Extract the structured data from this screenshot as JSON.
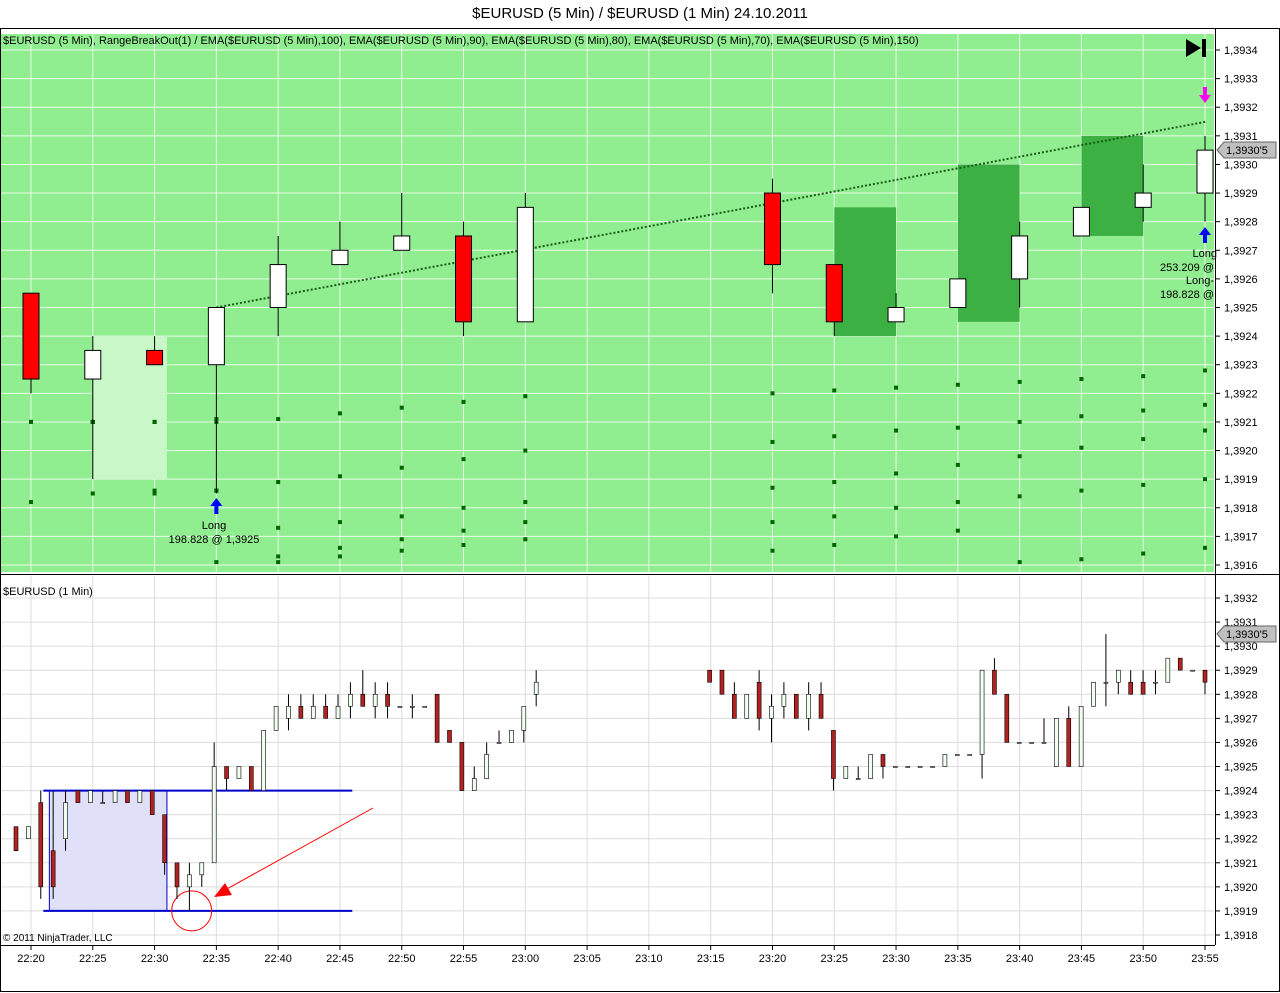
{
  "window": {
    "title": "$EURUSD (5 Min) / $EURUSD (1 Min)  24.10.2011",
    "copyright": "© 2011 NinjaTrader, LLC"
  },
  "colors": {
    "upper_bg": "#90ee90",
    "up_candle": "#ffffff",
    "down_candle": "#ff0000",
    "ema_dots": "#006400",
    "range_box": "#c8f7c8",
    "green_box": "#3cb043",
    "trend_line": "#1a5e1a",
    "lower_range_fill": "#e0e0f8",
    "lower_range_line": "#0000cc",
    "arrow_red": "#ff0000",
    "price_marker": "#c0c0c0",
    "long_arrow": "#0000ff",
    "short_arrow": "#ff00ff"
  },
  "chart_data": [
    {
      "type": "candlestick",
      "label": "$EURUSD (5 Min), RangeBreakOut(1) / EMA($EURUSD (5 Min),100), EMA($EURUSD (5 Min),90), EMA($EURUSD (5 Min),80), EMA($EURUSD (5 Min),70), EMA($EURUSD (5 Min),150)",
      "ylim": [
        1.39155,
        1.39345
      ],
      "y_ticks": [
        "1,3934",
        "1,3933",
        "1,3932",
        "1,3931",
        "1,3930",
        "1,3929",
        "1,3928",
        "1,3927",
        "1,3926",
        "1,3925",
        "1,3924",
        "1,3923",
        "1,3922",
        "1,3921",
        "1,3920",
        "1,3919",
        "1,3918",
        "1,3917",
        "1,3916"
      ],
      "price_marker": "1,3930'5",
      "candles": [
        {
          "t": "22:20",
          "o": 1.39255,
          "h": 1.39255,
          "l": 1.3922,
          "c": 1.39225
        },
        {
          "t": "22:25",
          "o": 1.39225,
          "h": 1.3924,
          "l": 1.3919,
          "c": 1.39235
        },
        {
          "t": "22:30",
          "o": 1.39235,
          "h": 1.3924,
          "l": 1.3923,
          "c": 1.3923
        },
        {
          "t": "22:35",
          "o": 1.3923,
          "h": 1.3925,
          "l": 1.39185,
          "c": 1.3925
        },
        {
          "t": "22:40",
          "o": 1.3925,
          "h": 1.39275,
          "l": 1.3924,
          "c": 1.39265
        },
        {
          "t": "22:45",
          "o": 1.39265,
          "h": 1.3928,
          "l": 1.39265,
          "c": 1.3927
        },
        {
          "t": "22:50",
          "o": 1.3927,
          "h": 1.3929,
          "l": 1.3927,
          "c": 1.39275
        },
        {
          "t": "22:55",
          "o": 1.39275,
          "h": 1.3928,
          "l": 1.3924,
          "c": 1.39245
        },
        {
          "t": "23:00",
          "o": 1.39245,
          "h": 1.3929,
          "l": 1.39245,
          "c": 1.39285
        },
        {
          "t": "23:20",
          "o": 1.3929,
          "h": 1.39295,
          "l": 1.39255,
          "c": 1.39265
        },
        {
          "t": "23:25",
          "o": 1.39265,
          "h": 1.39265,
          "l": 1.3924,
          "c": 1.39245
        },
        {
          "t": "23:30",
          "o": 1.39245,
          "h": 1.39255,
          "l": 1.39245,
          "c": 1.3925
        },
        {
          "t": "23:35",
          "o": 1.3925,
          "h": 1.3926,
          "l": 1.3925,
          "c": 1.3926
        },
        {
          "t": "23:40",
          "o": 1.3926,
          "h": 1.3928,
          "l": 1.3925,
          "c": 1.39275
        },
        {
          "t": "23:45",
          "o": 1.39275,
          "h": 1.39285,
          "l": 1.39275,
          "c": 1.39285
        },
        {
          "t": "23:50",
          "o": 1.39285,
          "h": 1.393,
          "l": 1.3928,
          "c": 1.3929
        },
        {
          "t": "23:55",
          "o": 1.3929,
          "h": 1.3931,
          "l": 1.3928,
          "c": 1.39305
        }
      ],
      "annotations": [
        {
          "text": "Long",
          "t": "22:35"
        },
        {
          "text": "198.828 @ 1,3925",
          "t": "22:35"
        },
        {
          "text": "Long",
          "t": "23:55"
        },
        {
          "text": "253.209 @",
          "t": "23:55"
        },
        {
          "text": "Long-",
          "t": "23:55"
        },
        {
          "text": "198.828 @",
          "t": "23:55"
        }
      ]
    },
    {
      "type": "candlestick",
      "label": "$EURUSD (1 Min)",
      "ylim": [
        1.39175,
        1.39325
      ],
      "y_ticks": [
        "1,3932",
        "1,3931",
        "1,3930",
        "1,3929",
        "1,3928",
        "1,3927",
        "1,3926",
        "1,3925",
        "1,3924",
        "1,3923",
        "1,3922",
        "1,3921",
        "1,3920",
        "1,3919",
        "1,3918"
      ],
      "price_marker": "1,3930'5",
      "x_ticks": [
        "22:20",
        "22:25",
        "22:30",
        "22:35",
        "22:40",
        "22:45",
        "22:50",
        "22:55",
        "23:00",
        "23:05",
        "23:10",
        "23:15",
        "23:20",
        "23:25",
        "23:30",
        "23:35",
        "23:40",
        "23:45",
        "23:50",
        "23:55"
      ]
    }
  ]
}
